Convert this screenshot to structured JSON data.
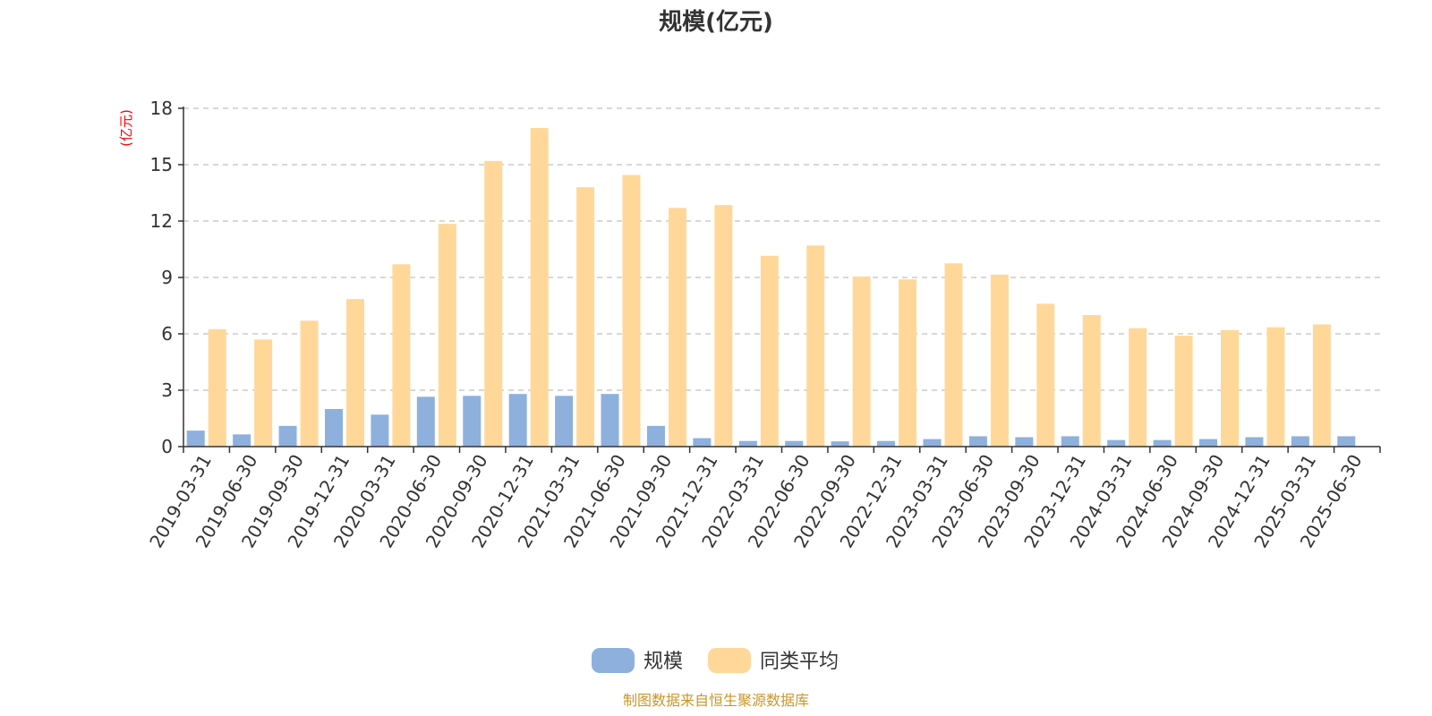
{
  "chart_data": {
    "type": "bar",
    "title": "规模(亿元)",
    "unit_label": "(亿元)",
    "ylim": [
      0,
      18
    ],
    "yticks": [
      0,
      3,
      6,
      9,
      12,
      15,
      18
    ],
    "grid": true,
    "legend_position": "bottom-center",
    "categories": [
      "2019-03-31",
      "2019-06-30",
      "2019-09-30",
      "2019-12-31",
      "2020-03-31",
      "2020-06-30",
      "2020-09-30",
      "2020-12-31",
      "2021-03-31",
      "2021-06-30",
      "2021-09-30",
      "2021-12-31",
      "2022-03-31",
      "2022-06-30",
      "2022-09-30",
      "2022-12-31",
      "2023-03-31",
      "2023-06-30",
      "2023-09-30",
      "2023-12-31",
      "2024-03-31",
      "2024-06-30",
      "2024-09-30",
      "2024-12-31",
      "2025-03-31",
      "2025-06-30"
    ],
    "series": [
      {
        "name": "规模",
        "color": "#8eb0dd",
        "values": [
          0.85,
          0.65,
          1.1,
          2.0,
          1.7,
          2.65,
          2.7,
          2.8,
          2.7,
          2.8,
          1.1,
          0.45,
          0.3,
          0.3,
          0.28,
          0.3,
          0.4,
          0.55,
          0.5,
          0.55,
          0.35,
          0.35,
          0.4,
          0.5,
          0.55,
          0.55
        ]
      },
      {
        "name": "同类平均",
        "color": "#ffd899",
        "values": [
          6.25,
          5.7,
          6.7,
          7.85,
          9.7,
          11.85,
          15.2,
          16.95,
          13.8,
          14.45,
          12.7,
          12.85,
          10.15,
          10.7,
          9.05,
          8.9,
          9.75,
          9.15,
          7.6,
          7.0,
          6.3,
          5.9,
          6.2,
          6.35,
          6.5,
          null
        ]
      }
    ]
  },
  "source": "制图数据来自恒生聚源数据库"
}
